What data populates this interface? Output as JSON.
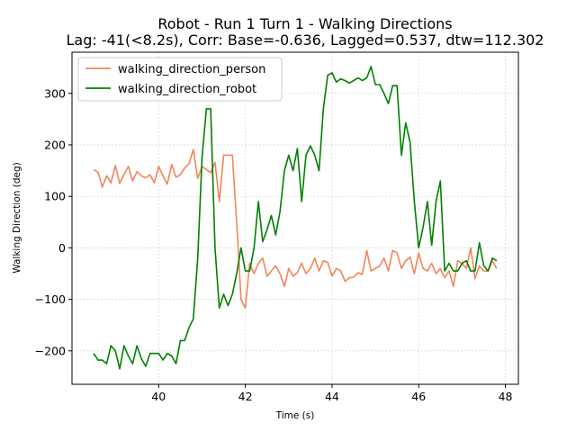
{
  "chart_data": {
    "type": "line",
    "title_line1": "Robot - Run 1 Turn 1 - Walking Directions",
    "title_line2": "Lag: -41(<8.2s), Corr: Base=-0.636, Lagged=0.537, dtw=112.302",
    "xlabel": "Time (s)",
    "ylabel": "Walking Direction (deg)",
    "xlim": [
      38.0,
      48.3
    ],
    "ylim": [
      -265,
      380
    ],
    "xticks": [
      40,
      42,
      44,
      46,
      48
    ],
    "yticks": [
      -200,
      -100,
      0,
      100,
      200,
      300
    ],
    "grid": true,
    "legend_position": "upper-left",
    "series": [
      {
        "name": "walking_direction_person",
        "color": "#f4845a",
        "x": [
          38.5,
          38.6,
          38.7,
          38.8,
          38.9,
          39.0,
          39.1,
          39.2,
          39.3,
          39.4,
          39.5,
          39.6,
          39.7,
          39.8,
          39.9,
          40.0,
          40.1,
          40.2,
          40.3,
          40.4,
          40.5,
          40.6,
          40.7,
          40.8,
          40.9,
          41.0,
          41.1,
          41.2,
          41.3,
          41.4,
          41.5,
          41.6,
          41.7,
          41.8,
          41.9,
          42.0,
          42.1,
          42.2,
          42.3,
          42.4,
          42.5,
          42.6,
          42.7,
          42.8,
          42.9,
          43.0,
          43.1,
          43.2,
          43.3,
          43.4,
          43.5,
          43.6,
          43.7,
          43.8,
          43.9,
          44.0,
          44.1,
          44.2,
          44.3,
          44.4,
          44.5,
          44.6,
          44.7,
          44.8,
          44.9,
          45.0,
          45.1,
          45.2,
          45.3,
          45.4,
          45.5,
          45.6,
          45.7,
          45.8,
          45.9,
          46.0,
          46.1,
          46.2,
          46.3,
          46.4,
          46.5,
          46.6,
          46.7,
          46.8,
          46.9,
          47.0,
          47.1,
          47.2,
          47.3,
          47.4,
          47.5,
          47.6,
          47.7,
          47.8
        ],
        "values": [
          152,
          147,
          118,
          140,
          126,
          160,
          125,
          143,
          158,
          130,
          148,
          140,
          136,
          142,
          126,
          158,
          140,
          124,
          162,
          137,
          142,
          155,
          163,
          191,
          135,
          158,
          152,
          146,
          166,
          90,
          180,
          180,
          180,
          50,
          -100,
          -117,
          -30,
          -50,
          -30,
          -20,
          -55,
          -45,
          -35,
          -50,
          -75,
          -40,
          -55,
          -48,
          -30,
          -50,
          -40,
          -20,
          -45,
          -25,
          -28,
          -55,
          -40,
          -45,
          -65,
          -58,
          -57,
          -48,
          -52,
          -5,
          -45,
          -40,
          -35,
          -20,
          -45,
          -5,
          -10,
          -40,
          -25,
          -18,
          -50,
          -10,
          -40,
          -45,
          -30,
          -50,
          -40,
          -58,
          -45,
          -75,
          -25,
          -30,
          -40,
          0,
          -60,
          -35,
          -45,
          -45,
          -25,
          -40
        ]
      },
      {
        "name": "walking_direction_robot",
        "color": "#008000",
        "x": [
          38.5,
          38.6,
          38.7,
          38.8,
          38.9,
          39.0,
          39.1,
          39.2,
          39.3,
          39.4,
          39.5,
          39.6,
          39.7,
          39.8,
          39.9,
          40.0,
          40.1,
          40.2,
          40.3,
          40.4,
          40.5,
          40.6,
          40.7,
          40.8,
          40.9,
          41.0,
          41.1,
          41.2,
          41.3,
          41.4,
          41.5,
          41.6,
          41.7,
          41.8,
          41.9,
          42.0,
          42.1,
          42.2,
          42.3,
          42.4,
          42.5,
          42.6,
          42.7,
          42.8,
          42.9,
          43.0,
          43.1,
          43.2,
          43.3,
          43.4,
          43.5,
          43.6,
          43.7,
          43.8,
          43.9,
          44.0,
          44.1,
          44.2,
          44.3,
          44.4,
          44.5,
          44.6,
          44.7,
          44.8,
          44.9,
          45.0,
          45.1,
          45.2,
          45.3,
          45.4,
          45.5,
          45.6,
          45.7,
          45.8,
          45.9,
          46.0,
          46.1,
          46.2,
          46.3,
          46.4,
          46.5,
          46.6,
          46.7,
          46.8,
          46.9,
          47.0,
          47.1,
          47.2,
          47.3,
          47.4,
          47.5,
          47.6,
          47.7,
          47.8
        ],
        "values": [
          -205,
          -218,
          -218,
          -225,
          -190,
          -200,
          -235,
          -190,
          -210,
          -225,
          -190,
          -215,
          -230,
          -205,
          -205,
          -205,
          -218,
          -205,
          -210,
          -225,
          -180,
          -180,
          -155,
          -138,
          -20,
          175,
          270,
          270,
          0,
          -117,
          -90,
          -112,
          -90,
          -50,
          0,
          -45,
          -45,
          0,
          90,
          12,
          35,
          63,
          25,
          70,
          150,
          180,
          150,
          193,
          90,
          180,
          198,
          180,
          150,
          270,
          335,
          340,
          322,
          328,
          325,
          320,
          325,
          330,
          325,
          330,
          352,
          317,
          317,
          300,
          280,
          315,
          315,
          180,
          243,
          205,
          90,
          0,
          40,
          90,
          5,
          90,
          130,
          -45,
          -30,
          -45,
          -45,
          -30,
          -25,
          -45,
          -45,
          10,
          -35,
          -45,
          -20,
          -25
        ]
      }
    ]
  }
}
